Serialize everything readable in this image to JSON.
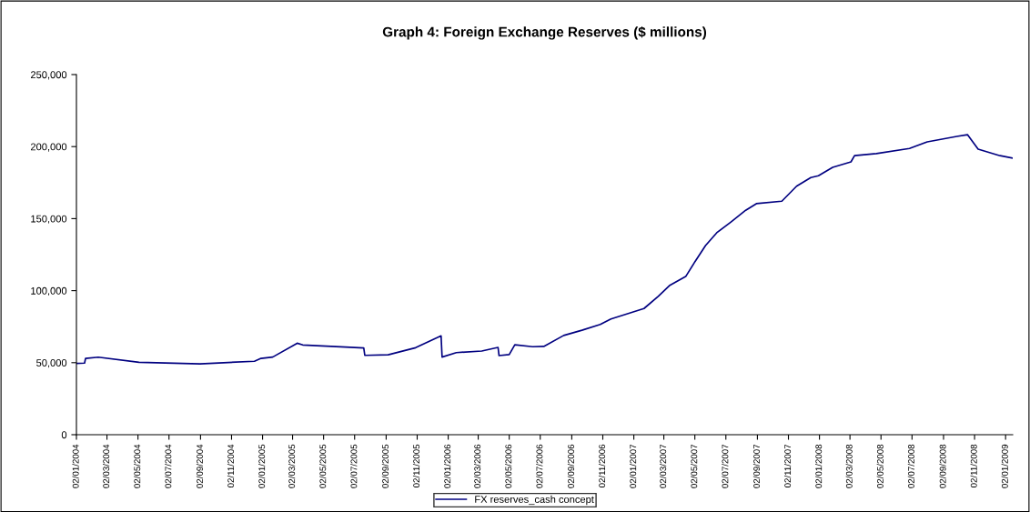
{
  "chart_data": {
    "type": "line",
    "title": "Graph 4: Foreign Exchange Reserves ($ millions)",
    "x": [
      "2004-01-02",
      "2004-01-18",
      "2004-01-20",
      "2004-02-14",
      "2004-05-04",
      "2004-09-01",
      "2004-12-17",
      "2004-12-30",
      "2005-01-22",
      "2005-03-11",
      "2005-03-22",
      "2005-06-14",
      "2005-07-20",
      "2005-07-22",
      "2005-09-06",
      "2005-10-30",
      "2005-12-19",
      "2005-12-21",
      "2006-01-18",
      "2006-03-09",
      "2006-04-10",
      "2006-04-12",
      "2006-05-02",
      "2006-05-13",
      "2006-06-17",
      "2006-07-09",
      "2006-08-17",
      "2006-09-22",
      "2006-10-28",
      "2006-11-18",
      "2007-01-22",
      "2007-02-19",
      "2007-03-13",
      "2007-04-14",
      "2007-05-02",
      "2007-05-23",
      "2007-06-14",
      "2007-07-12",
      "2007-08-10",
      "2007-08-31",
      "2007-10-20",
      "2007-11-18",
      "2007-12-16",
      "2007-12-31",
      "2008-01-28",
      "2008-03-04",
      "2008-03-11",
      "2008-04-23",
      "2008-06-27",
      "2008-08-01",
      "2008-09-28",
      "2008-10-19",
      "2008-11-09",
      "2008-12-22",
      "2009-01-16"
    ],
    "series": [
      {
        "name": "FX reserves_cash concept",
        "color": "#000080",
        "values": [
          49500,
          49700,
          53000,
          53800,
          50300,
          49200,
          51000,
          53000,
          53900,
          63500,
          62300,
          60800,
          60200,
          55100,
          55500,
          60400,
          68600,
          53900,
          57000,
          58100,
          60600,
          54900,
          55600,
          62400,
          61100,
          61300,
          68900,
          72500,
          76500,
          80300,
          87600,
          96000,
          103500,
          109800,
          120000,
          131300,
          140200,
          147700,
          155800,
          160400,
          162100,
          172500,
          178500,
          179800,
          185600,
          189400,
          193700,
          195200,
          198700,
          203300,
          207100,
          208300,
          198200,
          193700,
          192000
        ]
      }
    ],
    "xlim": [
      "2004-01-02",
      "2009-01-16"
    ],
    "xticks": [
      {
        "value": "2004-01-02",
        "label": "02/01/2004"
      },
      {
        "value": "2004-03-02",
        "label": "02/03/2004"
      },
      {
        "value": "2004-05-02",
        "label": "02/05/2004"
      },
      {
        "value": "2004-07-02",
        "label": "02/07/2004"
      },
      {
        "value": "2004-09-02",
        "label": "02/09/2004"
      },
      {
        "value": "2004-11-02",
        "label": "02/11/2004"
      },
      {
        "value": "2005-01-02",
        "label": "02/01/2005"
      },
      {
        "value": "2005-03-02",
        "label": "02/03/2005"
      },
      {
        "value": "2005-05-02",
        "label": "02/05/2005"
      },
      {
        "value": "2005-07-02",
        "label": "02/07/2005"
      },
      {
        "value": "2005-09-02",
        "label": "02/09/2005"
      },
      {
        "value": "2005-11-02",
        "label": "02/11/2005"
      },
      {
        "value": "2006-01-02",
        "label": "02/01/2006"
      },
      {
        "value": "2006-03-02",
        "label": "02/03/2006"
      },
      {
        "value": "2006-05-02",
        "label": "02/05/2006"
      },
      {
        "value": "2006-07-02",
        "label": "02/07/2006"
      },
      {
        "value": "2006-09-02",
        "label": "02/09/2006"
      },
      {
        "value": "2006-11-02",
        "label": "02/11/2006"
      },
      {
        "value": "2007-01-02",
        "label": "02/01/2007"
      },
      {
        "value": "2007-03-02",
        "label": "02/03/2007"
      },
      {
        "value": "2007-05-02",
        "label": "02/05/2007"
      },
      {
        "value": "2007-07-02",
        "label": "02/07/2007"
      },
      {
        "value": "2007-09-02",
        "label": "02/09/2007"
      },
      {
        "value": "2007-11-02",
        "label": "02/11/2007"
      },
      {
        "value": "2008-01-02",
        "label": "02/01/2008"
      },
      {
        "value": "2008-03-02",
        "label": "02/03/2008"
      },
      {
        "value": "2008-05-02",
        "label": "02/05/2008"
      },
      {
        "value": "2008-07-02",
        "label": "02/07/2008"
      },
      {
        "value": "2008-09-02",
        "label": "02/09/2008"
      },
      {
        "value": "2008-11-02",
        "label": "02/11/2008"
      },
      {
        "value": "2009-01-02",
        "label": "02/01/2009"
      }
    ],
    "ylim": [
      0,
      250000
    ],
    "yticks": [
      {
        "value": 0,
        "label": "0"
      },
      {
        "value": 50000,
        "label": "50,000"
      },
      {
        "value": 100000,
        "label": "100,000"
      },
      {
        "value": 150000,
        "label": "150,000"
      },
      {
        "value": 200000,
        "label": "200,000"
      },
      {
        "value": 250000,
        "label": "250,000"
      }
    ],
    "grid": false,
    "legend": "bottom",
    "marker": "none",
    "line_style": "solid"
  }
}
